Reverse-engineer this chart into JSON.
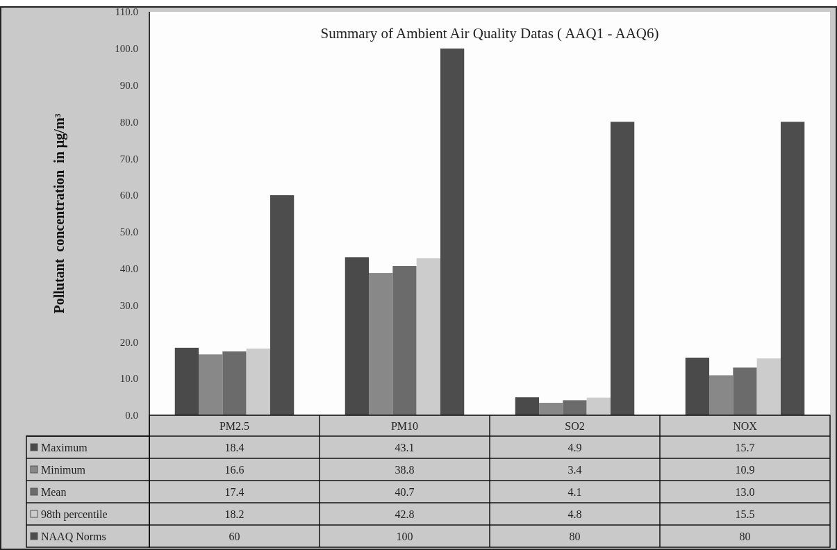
{
  "chart_data": {
    "type": "bar",
    "title": "Summary of Ambient Air Quality Datas ( AAQ1 - AAQ6)",
    "ylabel": "Pollutant  concentration  in µg/m³",
    "categories": [
      "PM2.5",
      "PM10",
      "SO2",
      "NOX"
    ],
    "series": [
      {
        "name": "Maximum",
        "color": "#4a4a4a",
        "values": [
          18.4,
          43.1,
          4.9,
          15.7
        ],
        "value_labels": [
          "18.4",
          "43.1",
          "4.9",
          "15.7"
        ]
      },
      {
        "name": "Minimum",
        "color": "#888888",
        "values": [
          16.6,
          38.8,
          3.4,
          10.9
        ],
        "value_labels": [
          "16.6",
          "38.8",
          "3.4",
          "10.9"
        ]
      },
      {
        "name": "Mean",
        "color": "#6b6b6b",
        "values": [
          17.4,
          40.7,
          4.1,
          13.0
        ],
        "value_labels": [
          "17.4",
          "40.7",
          "4.1",
          "13.0"
        ]
      },
      {
        "name": "98th percentile",
        "color": "#cccccc",
        "values": [
          18.2,
          42.8,
          4.8,
          15.5
        ],
        "value_labels": [
          "18.2",
          "42.8",
          "4.8",
          "15.5"
        ]
      },
      {
        "name": "NAAQ Norms",
        "color": "#4d4d4d",
        "values": [
          60,
          100,
          80,
          80
        ],
        "value_labels": [
          "60",
          "100",
          "80",
          "80"
        ]
      }
    ],
    "ylim": [
      0,
      110
    ],
    "yticks": [
      {
        "value": 0,
        "label": "0.0"
      },
      {
        "value": 10,
        "label": "10.0"
      },
      {
        "value": 20,
        "label": "20.0"
      },
      {
        "value": 30,
        "label": "30.0"
      },
      {
        "value": 40,
        "label": "40.0"
      },
      {
        "value": 50,
        "label": "50.0"
      },
      {
        "value": 60,
        "label": "60.0"
      },
      {
        "value": 70,
        "label": "70.0"
      },
      {
        "value": 80,
        "label": "80.0"
      },
      {
        "value": 90,
        "label": "90.0"
      },
      {
        "value": 100,
        "label": "100.0"
      },
      {
        "value": 110,
        "label": "110.0"
      }
    ],
    "legend": "bottom"
  }
}
